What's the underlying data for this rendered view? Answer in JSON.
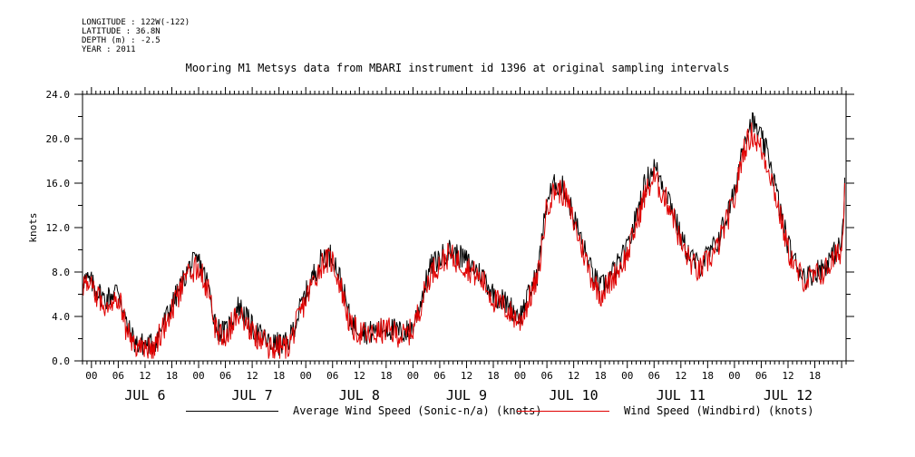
{
  "meta": {
    "longitude": "LONGITUDE : 122W(-122)",
    "latitude": "LATITUDE : 36.8N",
    "depth": "DEPTH (m) : -2.5",
    "year": "YEAR : 2011"
  },
  "chart_data": {
    "type": "line",
    "title": "Mooring M1 Metsys data from MBARI instrument id 1396 at original sampling intervals",
    "ylabel": "knots",
    "xlabel": "",
    "ylim": [
      0,
      24
    ],
    "y_ticks": [
      "0.0",
      "4.0",
      "8.0",
      "12.0",
      "16.0",
      "20.0",
      "24.0"
    ],
    "x_range_hours": [
      "2011-07-05T22:00",
      "2011-07-12T23:00"
    ],
    "hour_tick_labels": [
      "00",
      "06",
      "12",
      "18"
    ],
    "day_labels": [
      "JUL 6",
      "JUL 7",
      "JUL 8",
      "JUL 9",
      "JUL 10",
      "JUL 11",
      "JUL 12"
    ],
    "series": [
      {
        "name": "Average Wind Speed (Sonic-n/a) (knots)",
        "color": "#000000",
        "anchors": [
          [
            -2,
            7.5
          ],
          [
            0,
            7.0
          ],
          [
            3,
            5.5
          ],
          [
            6,
            6.5
          ],
          [
            8,
            3.0
          ],
          [
            10,
            1.5
          ],
          [
            14,
            1.5
          ],
          [
            18,
            5.0
          ],
          [
            22,
            8.5
          ],
          [
            24,
            9.0
          ],
          [
            26,
            7.0
          ],
          [
            28,
            3.0
          ],
          [
            30,
            2.5
          ],
          [
            33,
            5.0
          ],
          [
            36,
            3.0
          ],
          [
            40,
            1.5
          ],
          [
            44,
            1.5
          ],
          [
            47,
            5.0
          ],
          [
            50,
            8.0
          ],
          [
            52,
            9.5
          ],
          [
            54,
            9.5
          ],
          [
            56,
            7.0
          ],
          [
            58,
            3.5
          ],
          [
            62,
            2.5
          ],
          [
            66,
            3.0
          ],
          [
            70,
            2.5
          ],
          [
            72,
            3.0
          ],
          [
            76,
            8.5
          ],
          [
            80,
            10.0
          ],
          [
            84,
            9.0
          ],
          [
            88,
            7.5
          ],
          [
            90,
            6.0
          ],
          [
            92,
            5.5
          ],
          [
            96,
            4.0
          ],
          [
            100,
            8.0
          ],
          [
            102,
            14.5
          ],
          [
            104,
            16.0
          ],
          [
            106,
            15.5
          ],
          [
            108,
            13.0
          ],
          [
            110,
            10.5
          ],
          [
            112,
            8.0
          ],
          [
            114,
            6.5
          ],
          [
            116,
            7.5
          ],
          [
            120,
            10.0
          ],
          [
            124,
            16.0
          ],
          [
            126,
            17.5
          ],
          [
            128,
            16.0
          ],
          [
            130,
            14.0
          ],
          [
            132,
            11.0
          ],
          [
            134,
            9.5
          ],
          [
            136,
            8.5
          ],
          [
            140,
            10.5
          ],
          [
            144,
            15.0
          ],
          [
            146,
            20.0
          ],
          [
            148,
            21.5
          ],
          [
            150,
            20.0
          ],
          [
            152,
            18.0
          ],
          [
            154,
            14.0
          ],
          [
            156,
            10.5
          ],
          [
            158,
            8.5
          ],
          [
            160,
            7.5
          ],
          [
            162,
            8.0
          ],
          [
            164,
            8.5
          ],
          [
            166,
            9.5
          ],
          [
            168,
            10.5
          ],
          [
            169,
            16.5
          ]
        ],
        "noise": 1.1
      },
      {
        "name": "Wind Speed (Windbird) (knots)",
        "color": "#e00000",
        "anchors": [
          [
            -2,
            7.0
          ],
          [
            0,
            6.5
          ],
          [
            3,
            5.0
          ],
          [
            6,
            6.0
          ],
          [
            8,
            2.5
          ],
          [
            10,
            1.2
          ],
          [
            14,
            1.2
          ],
          [
            18,
            4.5
          ],
          [
            22,
            8.0
          ],
          [
            24,
            8.5
          ],
          [
            26,
            6.5
          ],
          [
            28,
            2.5
          ],
          [
            30,
            2.2
          ],
          [
            33,
            4.5
          ],
          [
            36,
            2.5
          ],
          [
            40,
            1.2
          ],
          [
            44,
            1.2
          ],
          [
            47,
            4.5
          ],
          [
            50,
            7.5
          ],
          [
            52,
            9.0
          ],
          [
            54,
            9.0
          ],
          [
            56,
            6.5
          ],
          [
            58,
            3.0
          ],
          [
            62,
            2.2
          ],
          [
            66,
            2.8
          ],
          [
            70,
            2.2
          ],
          [
            72,
            2.8
          ],
          [
            76,
            8.0
          ],
          [
            80,
            9.5
          ],
          [
            84,
            8.5
          ],
          [
            88,
            7.0
          ],
          [
            90,
            5.5
          ],
          [
            92,
            5.0
          ],
          [
            96,
            3.5
          ],
          [
            100,
            7.5
          ],
          [
            102,
            14.0
          ],
          [
            104,
            15.5
          ],
          [
            106,
            15.0
          ],
          [
            108,
            12.5
          ],
          [
            110,
            10.0
          ],
          [
            112,
            7.5
          ],
          [
            114,
            6.0
          ],
          [
            116,
            7.0
          ],
          [
            120,
            9.5
          ],
          [
            124,
            15.0
          ],
          [
            126,
            16.5
          ],
          [
            128,
            15.0
          ],
          [
            130,
            13.5
          ],
          [
            132,
            10.5
          ],
          [
            134,
            9.0
          ],
          [
            136,
            8.0
          ],
          [
            140,
            10.0
          ],
          [
            144,
            14.5
          ],
          [
            146,
            19.0
          ],
          [
            148,
            20.5
          ],
          [
            150,
            19.0
          ],
          [
            152,
            17.0
          ],
          [
            154,
            13.5
          ],
          [
            156,
            10.0
          ],
          [
            158,
            8.0
          ],
          [
            160,
            7.2
          ],
          [
            162,
            7.6
          ],
          [
            164,
            8.0
          ],
          [
            166,
            9.0
          ],
          [
            168,
            10.0
          ],
          [
            169,
            16.0
          ]
        ],
        "noise": 1.2
      }
    ]
  }
}
